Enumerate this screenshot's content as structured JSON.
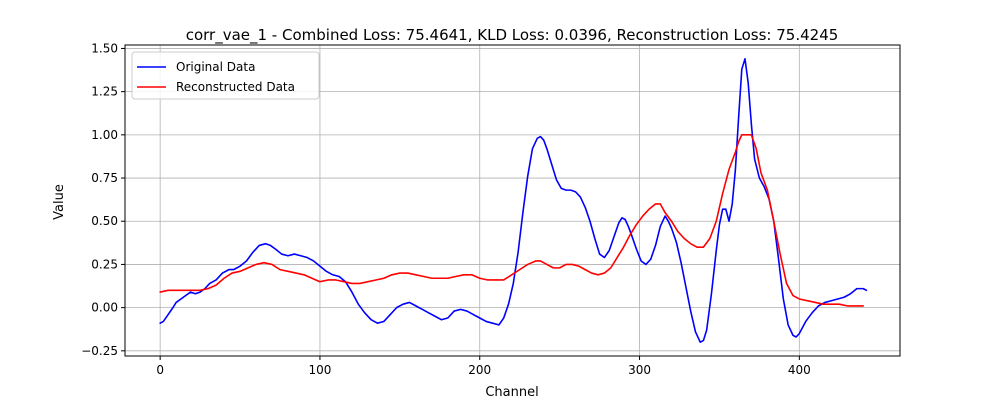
{
  "chart_data": {
    "type": "line",
    "title": "corr_vae_1 - Combined Loss: 75.4641, KLD Loss: 0.0396, Reconstruction Loss: 75.4245",
    "xlabel": "Channel",
    "ylabel": "Value",
    "xlim": [
      -22,
      463
    ],
    "ylim": [
      -0.28,
      1.52
    ],
    "xticks": [
      0,
      100,
      200,
      300,
      400
    ],
    "yticks": [
      -0.25,
      0.0,
      0.25,
      0.5,
      0.75,
      1.0,
      1.25,
      1.5
    ],
    "xtick_labels": [
      "0",
      "100",
      "200",
      "300",
      "400"
    ],
    "ytick_labels": [
      "−0.25",
      "0.00",
      "0.25",
      "0.50",
      "0.75",
      "1.00",
      "1.25",
      "1.50"
    ],
    "grid": true,
    "legend_position": "top-left",
    "series": [
      {
        "name": "Original Data",
        "color": "#0000ff",
        "x": [
          0,
          2,
          5,
          8,
          10,
          13,
          16,
          19,
          22,
          25,
          28,
          31,
          35,
          39,
          43,
          46,
          50,
          54,
          58,
          62,
          66,
          69,
          72,
          76,
          80,
          84,
          88,
          92,
          96,
          100,
          104,
          108,
          112,
          116,
          120,
          124,
          128,
          132,
          136,
          140,
          144,
          148,
          152,
          156,
          160,
          164,
          168,
          172,
          176,
          180,
          184,
          188,
          192,
          196,
          200,
          204,
          208,
          212,
          215,
          218,
          221,
          224,
          227,
          230,
          233,
          236,
          238,
          240,
          242,
          245,
          248,
          251,
          254,
          257,
          260,
          263,
          266,
          269,
          272,
          275,
          278,
          281,
          284,
          287,
          289,
          291,
          293,
          295,
          298,
          301,
          304,
          307,
          310,
          313,
          316,
          318,
          320,
          323,
          326,
          329,
          332,
          335,
          338,
          340,
          342,
          345,
          348,
          350,
          352,
          354,
          356,
          358,
          360,
          362,
          364,
          366,
          368,
          370,
          372,
          375,
          378,
          381,
          384,
          387,
          390,
          393,
          396,
          398,
          400,
          404,
          408,
          412,
          416,
          420,
          424,
          428,
          432,
          436,
          440,
          442
        ],
        "values": [
          -0.09,
          -0.08,
          -0.04,
          0.0,
          0.03,
          0.05,
          0.07,
          0.09,
          0.08,
          0.09,
          0.11,
          0.14,
          0.16,
          0.2,
          0.22,
          0.22,
          0.24,
          0.27,
          0.32,
          0.36,
          0.37,
          0.36,
          0.34,
          0.31,
          0.3,
          0.31,
          0.3,
          0.29,
          0.27,
          0.24,
          0.21,
          0.19,
          0.18,
          0.15,
          0.09,
          0.02,
          -0.03,
          -0.07,
          -0.09,
          -0.08,
          -0.04,
          0.0,
          0.02,
          0.03,
          0.01,
          -0.01,
          -0.03,
          -0.05,
          -0.07,
          -0.06,
          -0.02,
          -0.01,
          -0.02,
          -0.04,
          -0.06,
          -0.08,
          -0.09,
          -0.1,
          -0.06,
          0.02,
          0.14,
          0.32,
          0.55,
          0.76,
          0.92,
          0.98,
          0.99,
          0.97,
          0.92,
          0.83,
          0.74,
          0.69,
          0.68,
          0.68,
          0.67,
          0.64,
          0.58,
          0.5,
          0.4,
          0.31,
          0.29,
          0.33,
          0.41,
          0.49,
          0.52,
          0.51,
          0.47,
          0.42,
          0.34,
          0.27,
          0.25,
          0.28,
          0.36,
          0.47,
          0.53,
          0.5,
          0.46,
          0.38,
          0.26,
          0.12,
          -0.02,
          -0.14,
          -0.2,
          -0.19,
          -0.13,
          0.08,
          0.33,
          0.48,
          0.57,
          0.57,
          0.5,
          0.6,
          0.8,
          1.1,
          1.38,
          1.44,
          1.3,
          1.06,
          0.86,
          0.75,
          0.7,
          0.63,
          0.5,
          0.28,
          0.05,
          -0.1,
          -0.16,
          -0.17,
          -0.15,
          -0.08,
          -0.03,
          0.01,
          0.03,
          0.04,
          0.05,
          0.06,
          0.08,
          0.11,
          0.11,
          0.1
        ]
      },
      {
        "name": "Reconstructed Data",
        "color": "#ff0000",
        "x": [
          0,
          5,
          10,
          15,
          20,
          25,
          30,
          35,
          40,
          45,
          50,
          55,
          60,
          65,
          70,
          75,
          80,
          85,
          90,
          95,
          100,
          105,
          110,
          115,
          120,
          125,
          130,
          135,
          140,
          145,
          150,
          155,
          160,
          165,
          170,
          175,
          180,
          185,
          190,
          195,
          200,
          205,
          210,
          215,
          220,
          225,
          230,
          235,
          238,
          242,
          246,
          250,
          254,
          258,
          262,
          266,
          270,
          274,
          278,
          282,
          286,
          290,
          294,
          298,
          302,
          306,
          310,
          313,
          316,
          320,
          324,
          328,
          332,
          336,
          340,
          344,
          348,
          352,
          356,
          360,
          362,
          364,
          366,
          368,
          370,
          373,
          376,
          380,
          384,
          388,
          392,
          396,
          400,
          405,
          410,
          415,
          420,
          425,
          430,
          435,
          440
        ],
        "values": [
          0.09,
          0.1,
          0.1,
          0.1,
          0.1,
          0.1,
          0.11,
          0.13,
          0.17,
          0.2,
          0.21,
          0.23,
          0.25,
          0.26,
          0.25,
          0.22,
          0.21,
          0.2,
          0.19,
          0.17,
          0.15,
          0.16,
          0.16,
          0.15,
          0.14,
          0.14,
          0.15,
          0.16,
          0.17,
          0.19,
          0.2,
          0.2,
          0.19,
          0.18,
          0.17,
          0.17,
          0.17,
          0.18,
          0.19,
          0.19,
          0.17,
          0.16,
          0.16,
          0.16,
          0.19,
          0.22,
          0.25,
          0.27,
          0.27,
          0.25,
          0.23,
          0.23,
          0.25,
          0.25,
          0.24,
          0.22,
          0.2,
          0.19,
          0.2,
          0.23,
          0.29,
          0.35,
          0.42,
          0.48,
          0.53,
          0.57,
          0.6,
          0.6,
          0.55,
          0.5,
          0.44,
          0.4,
          0.37,
          0.35,
          0.35,
          0.4,
          0.5,
          0.66,
          0.8,
          0.9,
          0.96,
          1.0,
          1.0,
          1.0,
          1.0,
          0.92,
          0.78,
          0.68,
          0.5,
          0.31,
          0.14,
          0.07,
          0.05,
          0.04,
          0.03,
          0.02,
          0.02,
          0.02,
          0.01,
          0.01,
          0.01
        ]
      }
    ]
  }
}
